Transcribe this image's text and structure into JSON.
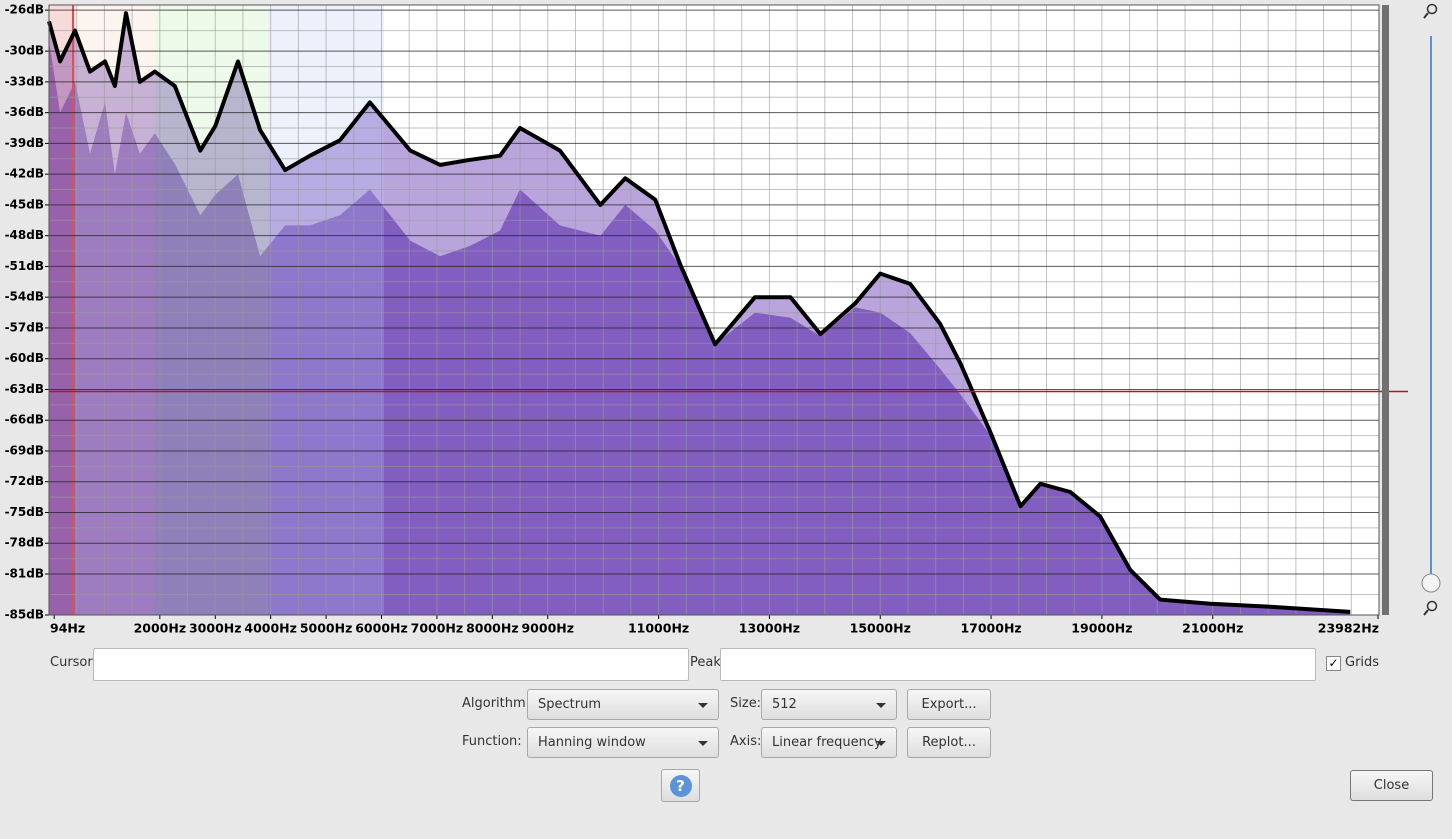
{
  "chart_data": {
    "type": "area",
    "x": [
      0,
      200,
      470,
      740,
      1010,
      1190,
      1390,
      1640,
      1910,
      2270,
      2730,
      3000,
      3410,
      3810,
      4260,
      4710,
      5250,
      5790,
      6520,
      7060,
      7600,
      8140,
      8500,
      9220,
      9950,
      10400,
      10940,
      11390,
      12020,
      12740,
      13380,
      13920,
      14550,
      15000,
      15540,
      16080,
      16450,
      16990,
      17530,
      17890,
      18430,
      18970,
      19510,
      20050,
      20960,
      22040,
      23480
    ],
    "series": [
      {
        "color": "#000000",
        "values": [
          -27.1,
          -31,
          -28,
          -32,
          -31,
          -33.4,
          -26.3,
          -33,
          -32,
          -33.4,
          -39.7,
          -37.3,
          -31,
          -37.7,
          -41.6,
          -40.2,
          -38.7,
          -35,
          -39.7,
          -41.1,
          -40.6,
          -40.2,
          -37.5,
          -39.7,
          -45,
          -42.4,
          -44.5,
          -50.8,
          -58.6,
          -54,
          -54,
          -57.6,
          -54.6,
          -51.7,
          -52.7,
          -56.6,
          -60.5,
          -67.2,
          -74.4,
          -72.2,
          -73,
          -75.4,
          -80.6,
          -83.5,
          -83.9,
          -84.2,
          -84.7
        ]
      },
      {
        "color": "#7b57bb",
        "values": [
          -29,
          -36,
          -33,
          -40,
          -35,
          -42,
          -36,
          -40,
          -38,
          -41,
          -46,
          -44,
          -42,
          -50,
          -47,
          -47,
          -46,
          -43.5,
          -48.5,
          -50,
          -49,
          -47.5,
          -43.5,
          -47,
          -48,
          -45,
          -47.5,
          -51,
          -58.6,
          -55.5,
          -56,
          -57.8,
          -55,
          -55.5,
          -57.5,
          -61,
          -63.5,
          -67.5,
          -74.6,
          -72.4,
          -73.2,
          -75.6,
          -80.8,
          -83.7,
          -84,
          -84.3,
          -84.8
        ]
      }
    ],
    "xlim": [
      0,
      24000
    ],
    "ylim": [
      -85,
      -25.5
    ],
    "xticks": [
      {
        "value": 94,
        "label": "94Hz"
      },
      {
        "value": 2000,
        "label": "2000Hz"
      },
      {
        "value": 3000,
        "label": "3000Hz"
      },
      {
        "value": 4000,
        "label": "4000Hz"
      },
      {
        "value": 5000,
        "label": "5000Hz"
      },
      {
        "value": 6000,
        "label": "6000Hz"
      },
      {
        "value": 7000,
        "label": "7000Hz"
      },
      {
        "value": 8000,
        "label": "8000Hz"
      },
      {
        "value": 9000,
        "label": "9000Hz"
      },
      {
        "value": 11000,
        "label": "11000Hz"
      },
      {
        "value": 13000,
        "label": "13000Hz"
      },
      {
        "value": 15000,
        "label": "15000Hz"
      },
      {
        "value": 17000,
        "label": "17000Hz"
      },
      {
        "value": 19000,
        "label": "19000Hz"
      },
      {
        "value": 21000,
        "label": "21000Hz"
      },
      {
        "value": 23982,
        "label": "23982Hz"
      }
    ],
    "yticks": [
      {
        "value": -26,
        "label": "-26dB"
      },
      {
        "value": -30,
        "label": "-30dB"
      },
      {
        "value": -33,
        "label": "-33dB"
      },
      {
        "value": -36,
        "label": "-36dB"
      },
      {
        "value": -39,
        "label": "-39dB"
      },
      {
        "value": -42,
        "label": "-42dB"
      },
      {
        "value": -45,
        "label": "-45dB"
      },
      {
        "value": -48,
        "label": "-48dB"
      },
      {
        "value": -51,
        "label": "-51dB"
      },
      {
        "value": -54,
        "label": "-54dB"
      },
      {
        "value": -57,
        "label": "-57dB"
      },
      {
        "value": -60,
        "label": "-60dB"
      },
      {
        "value": -63,
        "label": "-63dB"
      },
      {
        "value": -66,
        "label": "-66dB"
      },
      {
        "value": -69,
        "label": "-69dB"
      },
      {
        "value": -72,
        "label": "-72dB"
      },
      {
        "value": -75,
        "label": "-75dB"
      },
      {
        "value": -78,
        "label": "-78dB"
      },
      {
        "value": -81,
        "label": "-81dB"
      },
      {
        "value": -85,
        "label": "-85dB"
      }
    ],
    "cursor_level": -63.2,
    "grid": true
  },
  "controls": {
    "cursor_label": "Cursor:",
    "peak_label": "Peak:",
    "grids_label": "Grids",
    "algorithm_label": "Algorithm:",
    "algorithm_value": "Spectrum",
    "size_label": "Size:",
    "size_value": "512",
    "export_button": "Export...",
    "function_label": "Function:",
    "function_value": "Hanning window",
    "axis_label": "Axis:",
    "axis_value": "Linear frequency",
    "replot_button": "Replot...",
    "help_button": "?",
    "close_button": "Close"
  }
}
